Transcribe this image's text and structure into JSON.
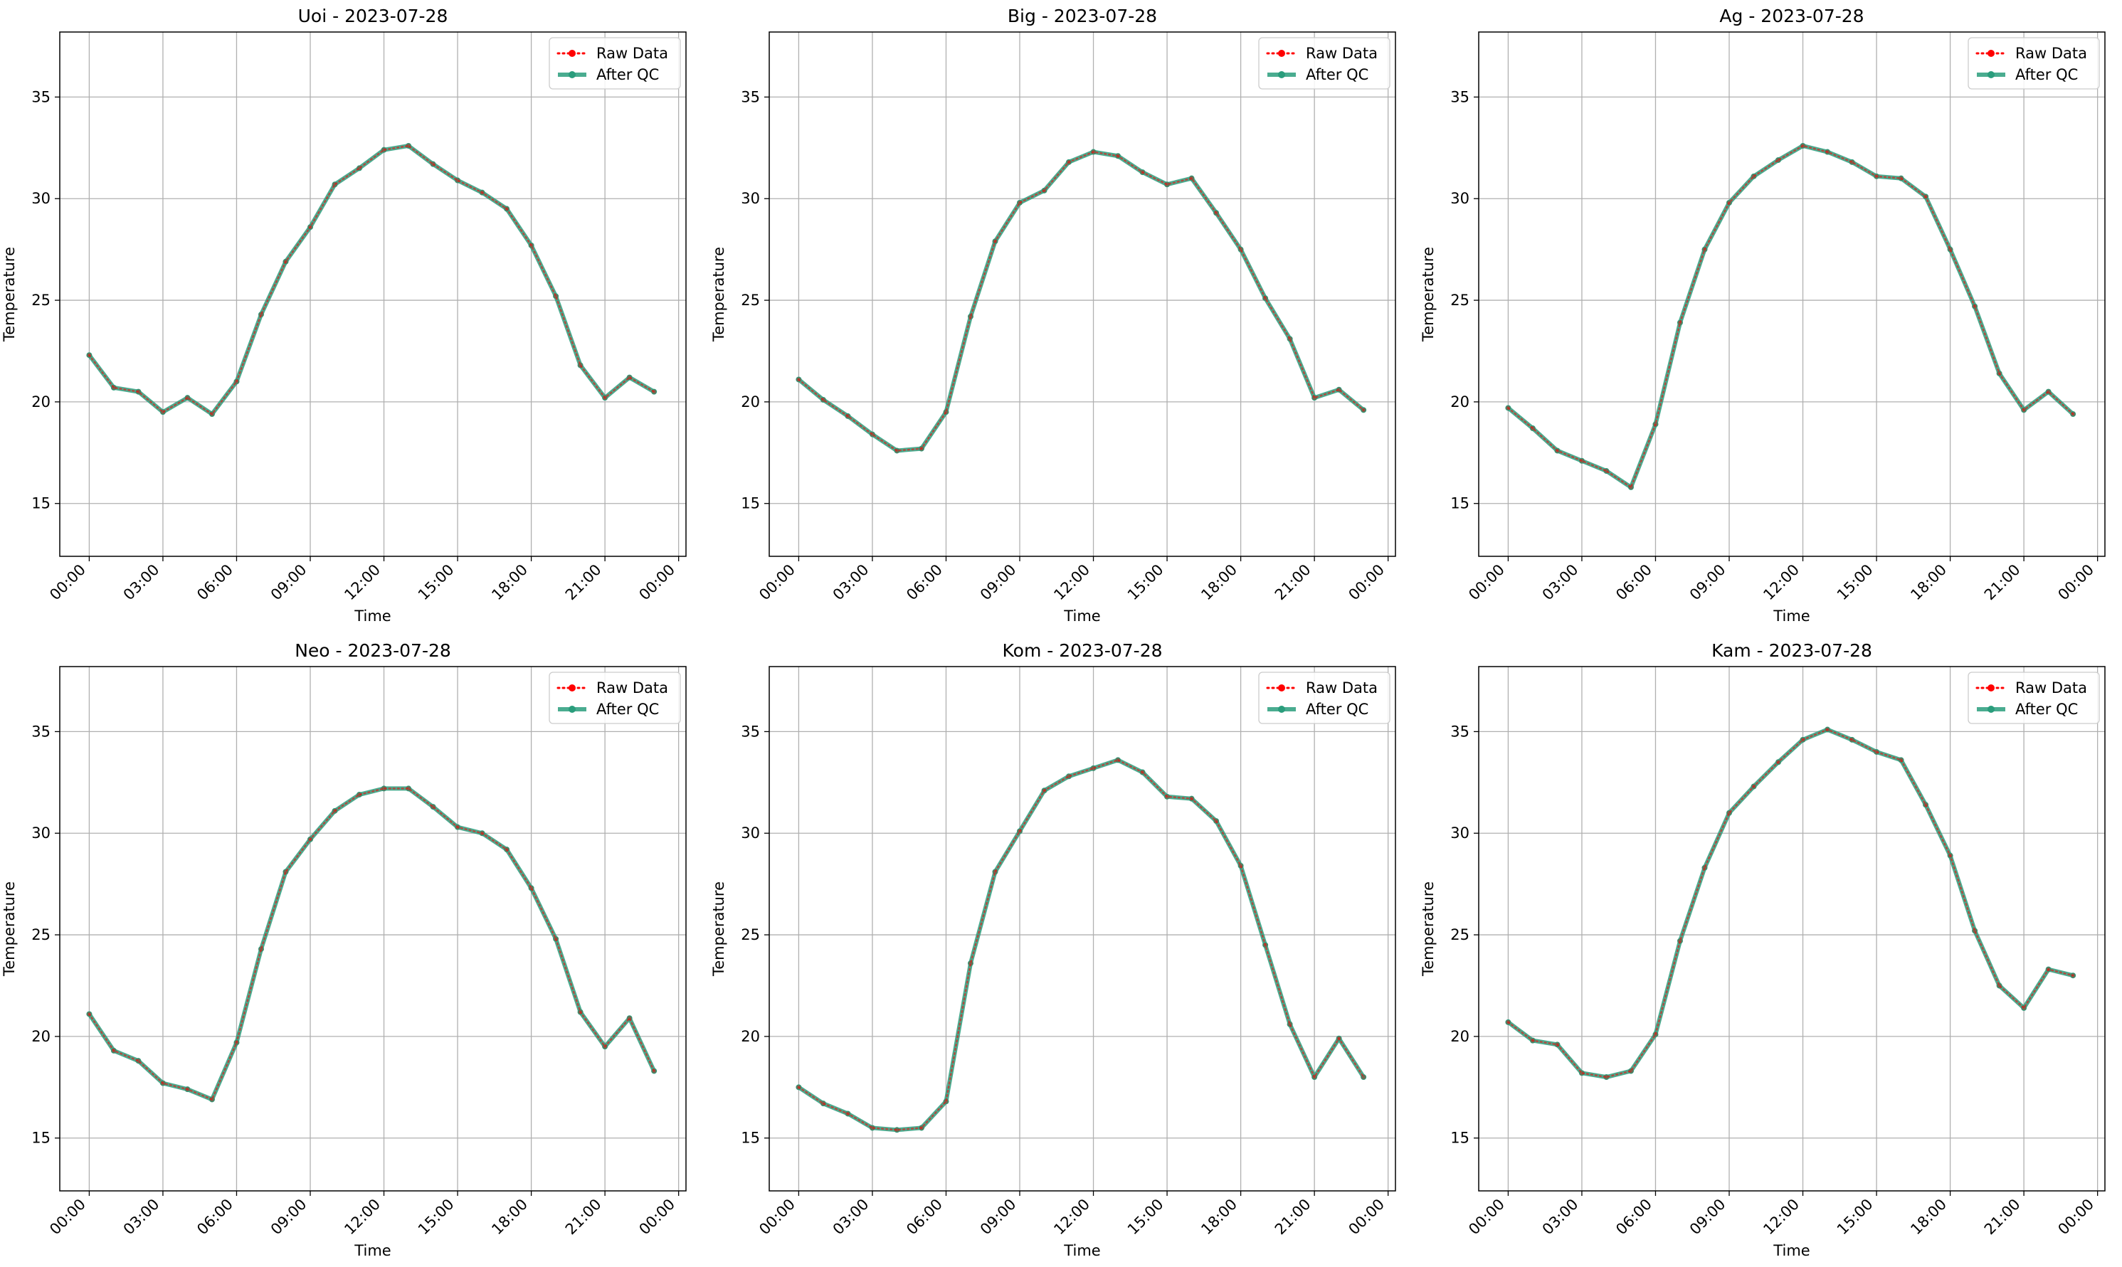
{
  "figure": {
    "background": "#ffffff"
  },
  "chart_data": [
    {
      "type": "line",
      "title": "Uoi - 2023-07-28",
      "xlabel": "Time",
      "ylabel": "Temperature",
      "x": [
        "00:00",
        "01:00",
        "02:00",
        "03:00",
        "04:00",
        "05:00",
        "06:00",
        "07:00",
        "08:00",
        "09:00",
        "10:00",
        "11:00",
        "12:00",
        "13:00",
        "14:00",
        "15:00",
        "16:00",
        "17:00",
        "18:00",
        "19:00",
        "20:00",
        "21:00",
        "22:00",
        "23:00"
      ],
      "xticks": [
        "00:00",
        "03:00",
        "06:00",
        "09:00",
        "12:00",
        "15:00",
        "18:00",
        "21:00",
        "00:00"
      ],
      "yticks": [
        15,
        20,
        25,
        30,
        35
      ],
      "ylim": [
        12.4,
        38.2
      ],
      "xlim_hours": [
        -1.2,
        24.3
      ],
      "grid": true,
      "legend": "top-right",
      "series": [
        {
          "name": "Raw Data",
          "color": "#ff0000",
          "style": "dotted",
          "marker": "o",
          "values": [
            22.3,
            20.7,
            20.5,
            19.5,
            20.2,
            19.4,
            21.0,
            24.3,
            26.9,
            28.6,
            30.7,
            31.5,
            32.4,
            32.6,
            31.7,
            30.9,
            30.3,
            29.5,
            27.7,
            25.2,
            21.8,
            20.2,
            21.2,
            20.5
          ]
        },
        {
          "name": "After QC",
          "color": "#2a9d7c",
          "style": "solid",
          "marker": "o",
          "values": [
            22.3,
            20.7,
            20.5,
            19.5,
            20.2,
            19.4,
            21.0,
            24.3,
            26.9,
            28.6,
            30.7,
            31.5,
            32.4,
            32.6,
            31.7,
            30.9,
            30.3,
            29.5,
            27.7,
            25.2,
            21.8,
            20.2,
            21.2,
            20.5
          ]
        }
      ]
    },
    {
      "type": "line",
      "title": "Big - 2023-07-28",
      "xlabel": "Time",
      "ylabel": "Temperature",
      "x": [
        "00:00",
        "01:00",
        "02:00",
        "03:00",
        "04:00",
        "05:00",
        "06:00",
        "07:00",
        "08:00",
        "09:00",
        "10:00",
        "11:00",
        "12:00",
        "13:00",
        "14:00",
        "15:00",
        "16:00",
        "17:00",
        "18:00",
        "19:00",
        "20:00",
        "21:00",
        "22:00",
        "23:00"
      ],
      "xticks": [
        "00:00",
        "03:00",
        "06:00",
        "09:00",
        "12:00",
        "15:00",
        "18:00",
        "21:00",
        "00:00"
      ],
      "yticks": [
        15,
        20,
        25,
        30,
        35
      ],
      "ylim": [
        12.4,
        38.2
      ],
      "xlim_hours": [
        -1.2,
        24.3
      ],
      "grid": true,
      "legend": "top-right",
      "series": [
        {
          "name": "Raw Data",
          "color": "#ff0000",
          "style": "dotted",
          "marker": "o",
          "values": [
            21.1,
            20.1,
            19.3,
            18.4,
            17.6,
            17.7,
            19.5,
            24.2,
            27.9,
            29.8,
            30.4,
            31.8,
            32.3,
            32.1,
            31.3,
            30.7,
            31.0,
            29.3,
            27.5,
            25.1,
            23.1,
            20.2,
            20.6,
            19.6
          ]
        },
        {
          "name": "After QC",
          "color": "#2a9d7c",
          "style": "solid",
          "marker": "o",
          "values": [
            21.1,
            20.1,
            19.3,
            18.4,
            17.6,
            17.7,
            19.5,
            24.2,
            27.9,
            29.8,
            30.4,
            31.8,
            32.3,
            32.1,
            31.3,
            30.7,
            31.0,
            29.3,
            27.5,
            25.1,
            23.1,
            20.2,
            20.6,
            19.6
          ]
        }
      ]
    },
    {
      "type": "line",
      "title": "Ag - 2023-07-28",
      "xlabel": "Time",
      "ylabel": "Temperature",
      "x": [
        "00:00",
        "01:00",
        "02:00",
        "03:00",
        "04:00",
        "05:00",
        "06:00",
        "07:00",
        "08:00",
        "09:00",
        "10:00",
        "11:00",
        "12:00",
        "13:00",
        "14:00",
        "15:00",
        "16:00",
        "17:00",
        "18:00",
        "19:00",
        "20:00",
        "21:00",
        "22:00",
        "23:00"
      ],
      "xticks": [
        "00:00",
        "03:00",
        "06:00",
        "09:00",
        "12:00",
        "15:00",
        "18:00",
        "21:00",
        "00:00"
      ],
      "yticks": [
        15,
        20,
        25,
        30,
        35
      ],
      "ylim": [
        12.4,
        38.2
      ],
      "xlim_hours": [
        -1.2,
        24.3
      ],
      "grid": true,
      "legend": "top-right",
      "series": [
        {
          "name": "Raw Data",
          "color": "#ff0000",
          "style": "dotted",
          "marker": "o",
          "values": [
            19.7,
            18.7,
            17.6,
            17.1,
            16.6,
            15.8,
            18.9,
            23.9,
            27.5,
            29.8,
            31.1,
            31.9,
            32.6,
            32.3,
            31.8,
            31.1,
            31.0,
            30.1,
            27.5,
            24.7,
            21.4,
            19.6,
            20.5,
            19.4
          ]
        },
        {
          "name": "After QC",
          "color": "#2a9d7c",
          "style": "solid",
          "marker": "o",
          "values": [
            19.7,
            18.7,
            17.6,
            17.1,
            16.6,
            15.8,
            18.9,
            23.9,
            27.5,
            29.8,
            31.1,
            31.9,
            32.6,
            32.3,
            31.8,
            31.1,
            31.0,
            30.1,
            27.5,
            24.7,
            21.4,
            19.6,
            20.5,
            19.4
          ]
        }
      ]
    },
    {
      "type": "line",
      "title": "Neo - 2023-07-28",
      "xlabel": "Time",
      "ylabel": "Temperature",
      "x": [
        "00:00",
        "01:00",
        "02:00",
        "03:00",
        "04:00",
        "05:00",
        "06:00",
        "07:00",
        "08:00",
        "09:00",
        "10:00",
        "11:00",
        "12:00",
        "13:00",
        "14:00",
        "15:00",
        "16:00",
        "17:00",
        "18:00",
        "19:00",
        "20:00",
        "21:00",
        "22:00",
        "23:00"
      ],
      "xticks": [
        "00:00",
        "03:00",
        "06:00",
        "09:00",
        "12:00",
        "15:00",
        "18:00",
        "21:00",
        "00:00"
      ],
      "yticks": [
        15,
        20,
        25,
        30,
        35
      ],
      "ylim": [
        12.4,
        38.2
      ],
      "xlim_hours": [
        -1.2,
        24.3
      ],
      "grid": true,
      "legend": "top-right",
      "series": [
        {
          "name": "Raw Data",
          "color": "#ff0000",
          "style": "dotted",
          "marker": "o",
          "values": [
            21.1,
            19.3,
            18.8,
            17.7,
            17.4,
            16.9,
            19.7,
            24.3,
            28.1,
            29.7,
            31.1,
            31.9,
            32.2,
            32.2,
            31.3,
            30.3,
            30.0,
            29.2,
            27.3,
            24.8,
            21.2,
            19.5,
            20.9,
            18.3
          ]
        },
        {
          "name": "After QC",
          "color": "#2a9d7c",
          "style": "solid",
          "marker": "o",
          "values": [
            21.1,
            19.3,
            18.8,
            17.7,
            17.4,
            16.9,
            19.7,
            24.3,
            28.1,
            29.7,
            31.1,
            31.9,
            32.2,
            32.2,
            31.3,
            30.3,
            30.0,
            29.2,
            27.3,
            24.8,
            21.2,
            19.5,
            20.9,
            18.3
          ]
        }
      ]
    },
    {
      "type": "line",
      "title": "Kom - 2023-07-28",
      "xlabel": "Time",
      "ylabel": "Temperature",
      "x": [
        "00:00",
        "01:00",
        "02:00",
        "03:00",
        "04:00",
        "05:00",
        "06:00",
        "07:00",
        "08:00",
        "09:00",
        "10:00",
        "11:00",
        "12:00",
        "13:00",
        "14:00",
        "15:00",
        "16:00",
        "17:00",
        "18:00",
        "19:00",
        "20:00",
        "21:00",
        "22:00",
        "23:00"
      ],
      "xticks": [
        "00:00",
        "03:00",
        "06:00",
        "09:00",
        "12:00",
        "15:00",
        "18:00",
        "21:00",
        "00:00"
      ],
      "yticks": [
        15,
        20,
        25,
        30,
        35
      ],
      "ylim": [
        12.4,
        38.2
      ],
      "xlim_hours": [
        -1.2,
        24.3
      ],
      "grid": true,
      "legend": "top-right",
      "series": [
        {
          "name": "Raw Data",
          "color": "#ff0000",
          "style": "dotted",
          "marker": "o",
          "values": [
            17.5,
            16.7,
            16.2,
            15.5,
            15.4,
            15.5,
            16.8,
            23.6,
            28.1,
            30.1,
            32.1,
            32.8,
            33.2,
            33.6,
            33.0,
            31.8,
            31.7,
            30.6,
            28.4,
            24.5,
            20.6,
            18.0,
            19.9,
            18.0
          ]
        },
        {
          "name": "After QC",
          "color": "#2a9d7c",
          "style": "solid",
          "marker": "o",
          "values": [
            17.5,
            16.7,
            16.2,
            15.5,
            15.4,
            15.5,
            16.8,
            23.6,
            28.1,
            30.1,
            32.1,
            32.8,
            33.2,
            33.6,
            33.0,
            31.8,
            31.7,
            30.6,
            28.4,
            24.5,
            20.6,
            18.0,
            19.9,
            18.0
          ]
        }
      ]
    },
    {
      "type": "line",
      "title": "Kam - 2023-07-28",
      "xlabel": "Time",
      "ylabel": "Temperature",
      "x": [
        "00:00",
        "01:00",
        "02:00",
        "03:00",
        "04:00",
        "05:00",
        "06:00",
        "07:00",
        "08:00",
        "09:00",
        "10:00",
        "11:00",
        "12:00",
        "13:00",
        "14:00",
        "15:00",
        "16:00",
        "17:00",
        "18:00",
        "19:00",
        "20:00",
        "21:00",
        "22:00",
        "23:00"
      ],
      "xticks": [
        "00:00",
        "03:00",
        "06:00",
        "09:00",
        "12:00",
        "15:00",
        "18:00",
        "21:00",
        "00:00"
      ],
      "yticks": [
        15,
        20,
        25,
        30,
        35
      ],
      "ylim": [
        12.4,
        38.2
      ],
      "xlim_hours": [
        -1.2,
        24.3
      ],
      "grid": true,
      "legend": "top-right",
      "series": [
        {
          "name": "Raw Data",
          "color": "#ff0000",
          "style": "dotted",
          "marker": "o",
          "values": [
            20.7,
            19.8,
            19.6,
            18.2,
            18.0,
            18.3,
            20.1,
            24.7,
            28.3,
            31.0,
            32.3,
            33.5,
            34.6,
            35.1,
            34.6,
            34.0,
            33.6,
            31.4,
            28.9,
            25.2,
            22.5,
            21.4,
            23.3,
            23.0
          ]
        },
        {
          "name": "After QC",
          "color": "#2a9d7c",
          "style": "solid",
          "marker": "o",
          "values": [
            20.7,
            19.8,
            19.6,
            18.2,
            18.0,
            18.3,
            20.1,
            24.7,
            28.3,
            31.0,
            32.3,
            33.5,
            34.6,
            35.1,
            34.6,
            34.0,
            33.6,
            31.4,
            28.9,
            25.2,
            22.5,
            21.4,
            23.3,
            23.0
          ]
        }
      ]
    }
  ]
}
